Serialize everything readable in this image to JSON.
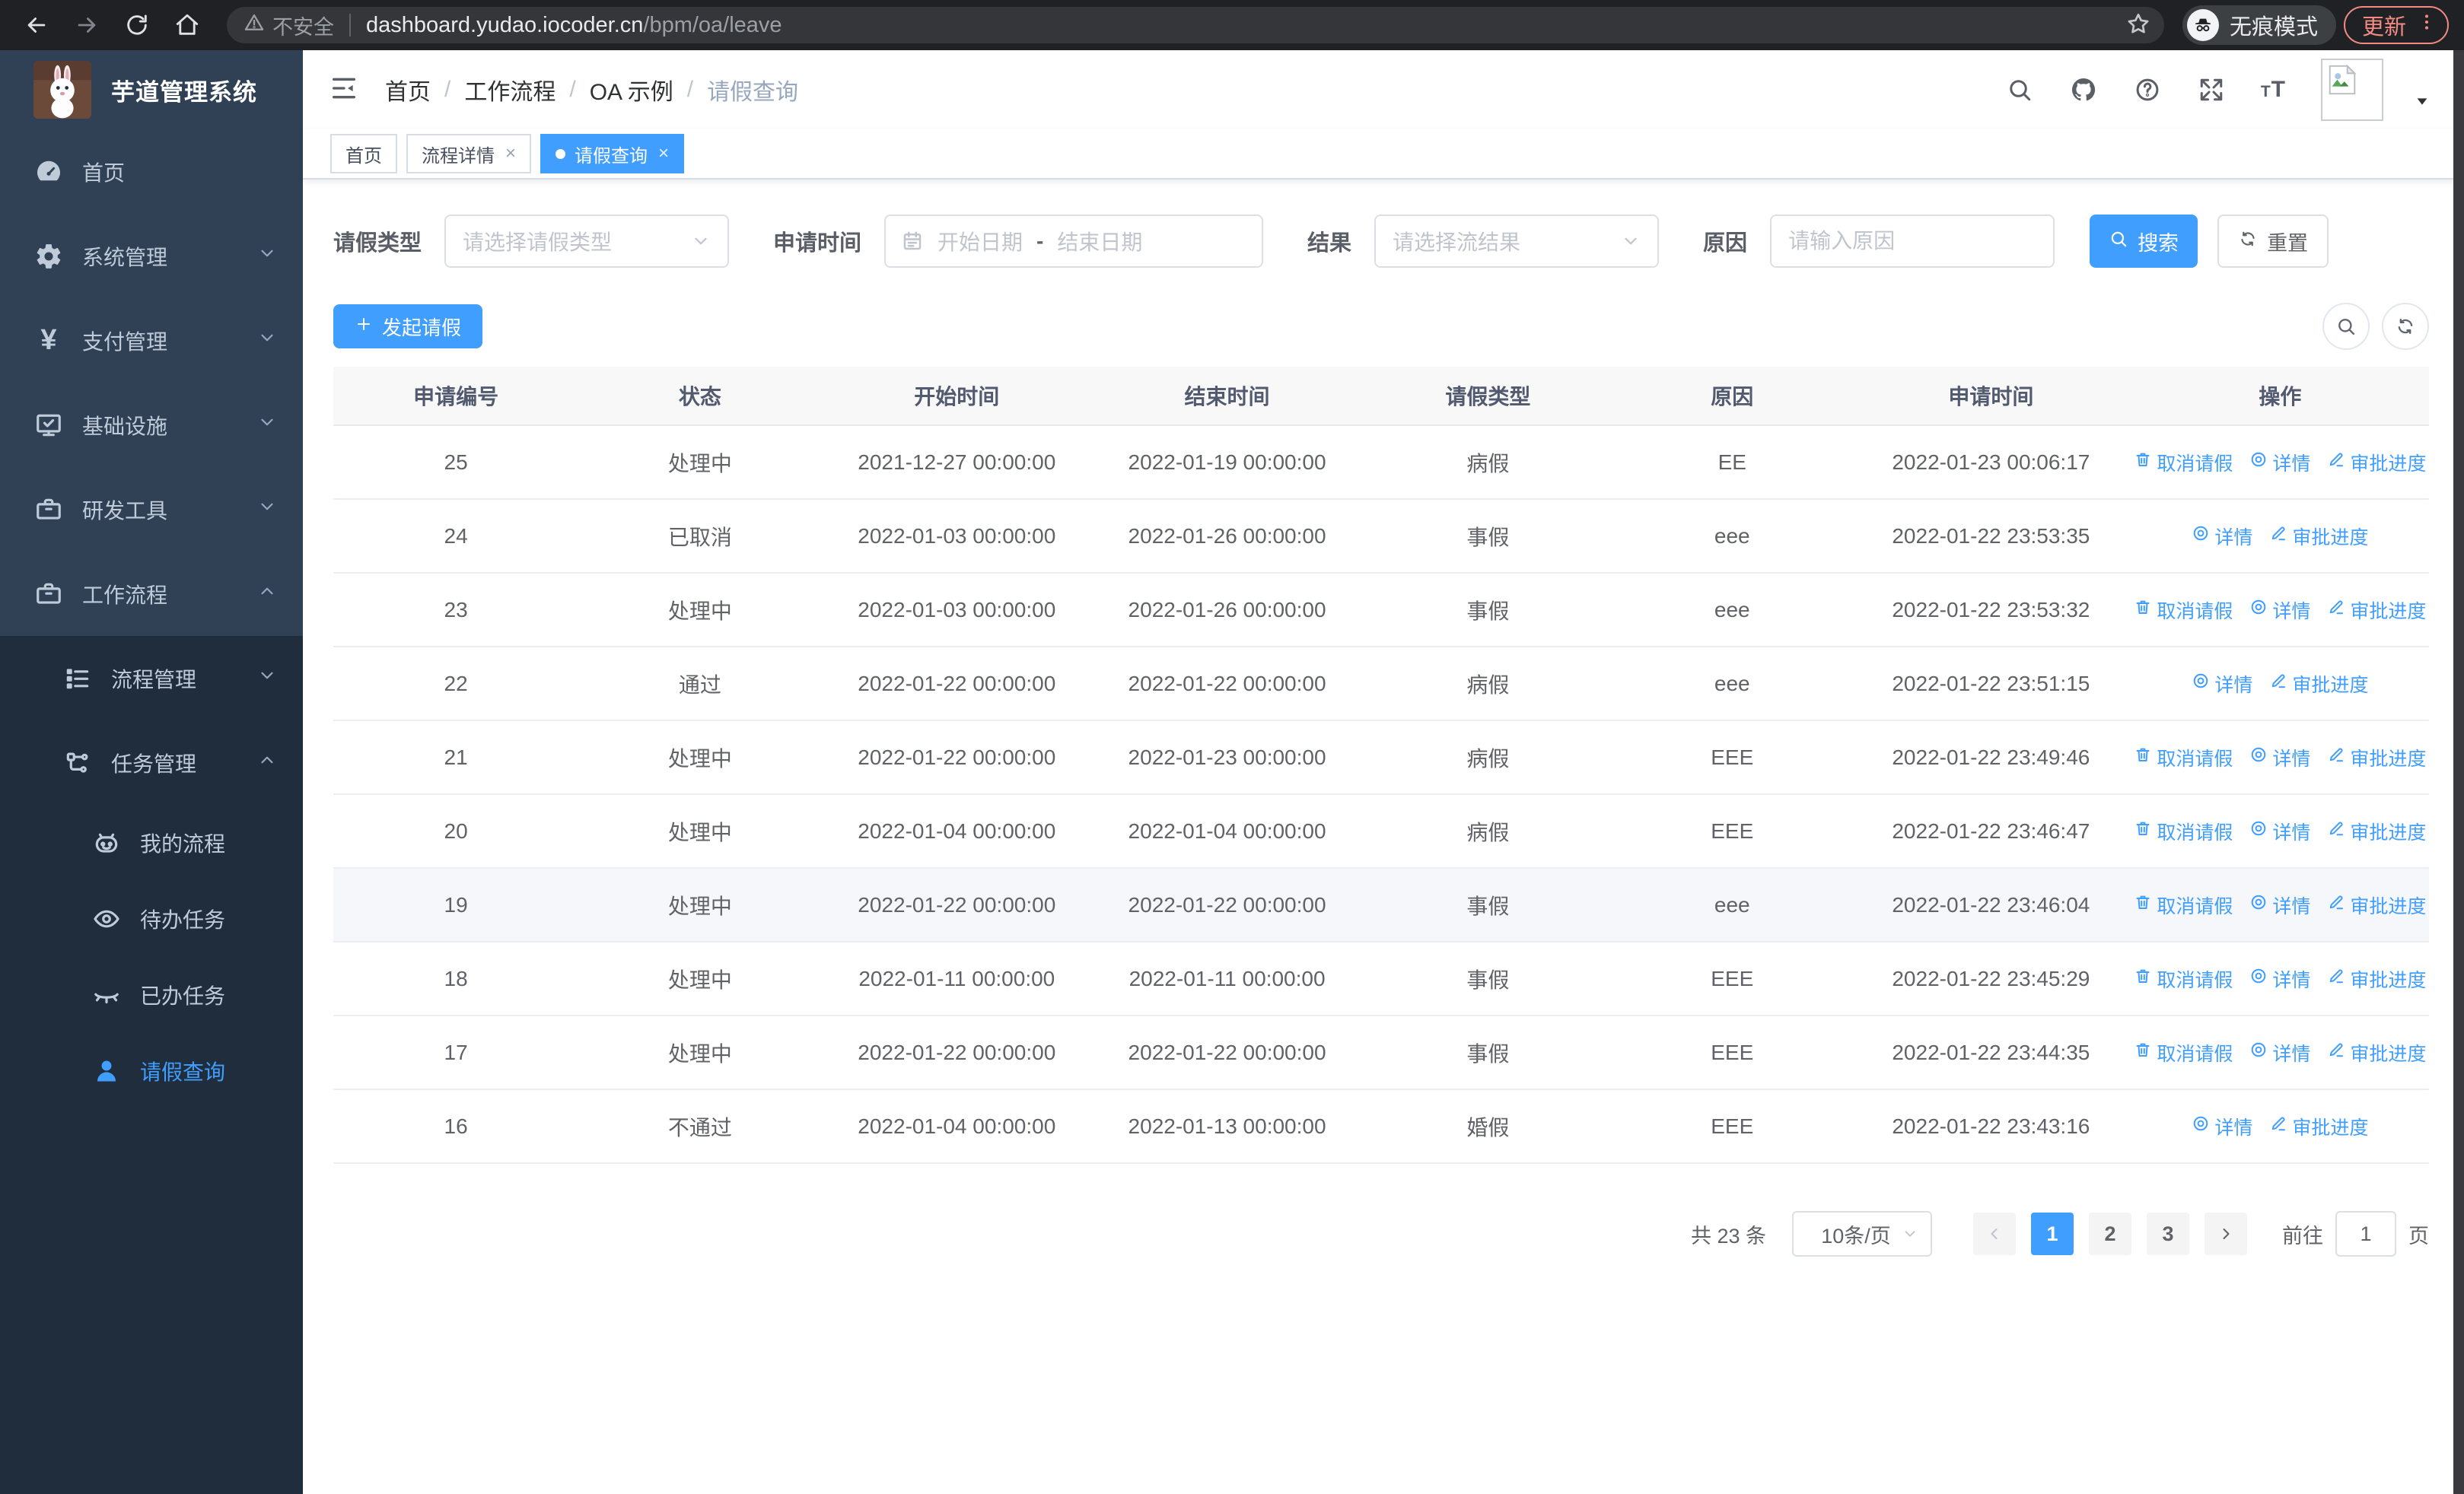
{
  "browser": {
    "security_label": "不安全",
    "url_host": "dashboard.yudao.iocoder.cn",
    "url_path": "/bpm/oa/leave",
    "incognito_label": "无痕模式",
    "update_label": "更新"
  },
  "sidebar": {
    "title": "芋道管理系统",
    "items": [
      {
        "key": "home",
        "label": "首页",
        "icon": "dashboard",
        "level": 1,
        "arrow": null,
        "dark": false,
        "active": false
      },
      {
        "key": "system",
        "label": "系统管理",
        "icon": "gear",
        "level": 1,
        "arrow": "down",
        "dark": false,
        "active": false
      },
      {
        "key": "payment",
        "label": "支付管理",
        "icon": "yen",
        "level": 1,
        "arrow": "down",
        "dark": false,
        "active": false
      },
      {
        "key": "infra",
        "label": "基础设施",
        "icon": "monitor",
        "level": 1,
        "arrow": "down",
        "dark": false,
        "active": false
      },
      {
        "key": "devtools",
        "label": "研发工具",
        "icon": "briefcase",
        "level": 1,
        "arrow": "down",
        "dark": false,
        "active": false
      },
      {
        "key": "workflow",
        "label": "工作流程",
        "icon": "briefcase",
        "level": 1,
        "arrow": "up",
        "dark": false,
        "active": false
      },
      {
        "key": "process-mgmt",
        "label": "流程管理",
        "icon": "treelist",
        "level": 2,
        "arrow": "down",
        "dark": true,
        "active": false
      },
      {
        "key": "task-mgmt",
        "label": "任务管理",
        "icon": "flow",
        "level": 2,
        "arrow": "up",
        "dark": true,
        "active": false
      },
      {
        "key": "my-process",
        "label": "我的流程",
        "icon": "robot",
        "level": 3,
        "arrow": null,
        "dark": true,
        "active": false
      },
      {
        "key": "todo-task",
        "label": "待办任务",
        "icon": "eye",
        "level": 3,
        "arrow": null,
        "dark": true,
        "active": false
      },
      {
        "key": "done-task",
        "label": "已办任务",
        "icon": "eyeclosed",
        "level": 3,
        "arrow": null,
        "dark": true,
        "active": false
      },
      {
        "key": "leave-query",
        "label": "请假查询",
        "icon": "user",
        "level": 3,
        "arrow": null,
        "dark": true,
        "active": true
      }
    ]
  },
  "header": {
    "breadcrumb": [
      "首页",
      "工作流程",
      "OA 示例",
      "请假查询"
    ],
    "font_icon_text": "tT"
  },
  "tabs": [
    {
      "label": "首页",
      "closable": false,
      "active": false
    },
    {
      "label": "流程详情",
      "closable": true,
      "active": false
    },
    {
      "label": "请假查询",
      "closable": true,
      "active": true
    }
  ],
  "filters": {
    "leave_type_label": "请假类型",
    "leave_type_placeholder": "请选择请假类型",
    "apply_time_label": "申请时间",
    "start_date_placeholder": "开始日期",
    "date_separator": "-",
    "end_date_placeholder": "结束日期",
    "result_label": "结果",
    "result_placeholder": "请选择流结果",
    "reason_label": "原因",
    "reason_placeholder": "请输入原因",
    "search_label": "搜索",
    "reset_label": "重置"
  },
  "toolbar": {
    "create_label": "发起请假"
  },
  "table": {
    "columns": [
      "申请编号",
      "状态",
      "开始时间",
      "结束时间",
      "请假类型",
      "原因",
      "申请时间",
      "操作"
    ],
    "action_labels": {
      "cancel": "取消请假",
      "detail": "详情",
      "progress": "审批进度"
    },
    "rows": [
      {
        "id": "25",
        "status": "处理中",
        "start": "2021-12-27 00:00:00",
        "end": "2022-01-19 00:00:00",
        "type": "病假",
        "reason": "EE",
        "applied": "2022-01-23 00:06:17",
        "cancelable": true,
        "highlight": false
      },
      {
        "id": "24",
        "status": "已取消",
        "start": "2022-01-03 00:00:00",
        "end": "2022-01-26 00:00:00",
        "type": "事假",
        "reason": "eee",
        "applied": "2022-01-22 23:53:35",
        "cancelable": false,
        "highlight": false
      },
      {
        "id": "23",
        "status": "处理中",
        "start": "2022-01-03 00:00:00",
        "end": "2022-01-26 00:00:00",
        "type": "事假",
        "reason": "eee",
        "applied": "2022-01-22 23:53:32",
        "cancelable": true,
        "highlight": false
      },
      {
        "id": "22",
        "status": "通过",
        "start": "2022-01-22 00:00:00",
        "end": "2022-01-22 00:00:00",
        "type": "病假",
        "reason": "eee",
        "applied": "2022-01-22 23:51:15",
        "cancelable": false,
        "highlight": false
      },
      {
        "id": "21",
        "status": "处理中",
        "start": "2022-01-22 00:00:00",
        "end": "2022-01-23 00:00:00",
        "type": "病假",
        "reason": "EEE",
        "applied": "2022-01-22 23:49:46",
        "cancelable": true,
        "highlight": false
      },
      {
        "id": "20",
        "status": "处理中",
        "start": "2022-01-04 00:00:00",
        "end": "2022-01-04 00:00:00",
        "type": "病假",
        "reason": "EEE",
        "applied": "2022-01-22 23:46:47",
        "cancelable": true,
        "highlight": false
      },
      {
        "id": "19",
        "status": "处理中",
        "start": "2022-01-22 00:00:00",
        "end": "2022-01-22 00:00:00",
        "type": "事假",
        "reason": "eee",
        "applied": "2022-01-22 23:46:04",
        "cancelable": true,
        "highlight": true
      },
      {
        "id": "18",
        "status": "处理中",
        "start": "2022-01-11 00:00:00",
        "end": "2022-01-11 00:00:00",
        "type": "事假",
        "reason": "EEE",
        "applied": "2022-01-22 23:45:29",
        "cancelable": true,
        "highlight": false
      },
      {
        "id": "17",
        "status": "处理中",
        "start": "2022-01-22 00:00:00",
        "end": "2022-01-22 00:00:00",
        "type": "事假",
        "reason": "EEE",
        "applied": "2022-01-22 23:44:35",
        "cancelable": true,
        "highlight": false
      },
      {
        "id": "16",
        "status": "不通过",
        "start": "2022-01-04 00:00:00",
        "end": "2022-01-13 00:00:00",
        "type": "婚假",
        "reason": "EEE",
        "applied": "2022-01-22 23:43:16",
        "cancelable": false,
        "highlight": false
      }
    ]
  },
  "pagination": {
    "total_label": "共 23 条",
    "page_size_value": "10条/页",
    "pages": [
      "1",
      "2",
      "3"
    ],
    "active_page": "1",
    "goto_label": "前往",
    "goto_value": "1",
    "goto_suffix": "页"
  },
  "icons": {
    "search-icon": "magnifier",
    "github-icon": "octocat",
    "question-icon": "circled question mark",
    "fullscreen-icon": "expand arrows",
    "font-size-icon": "tT glyph",
    "avatar-placeholder-icon": "broken image",
    "incognito-icon": "hat and glasses",
    "warning-icon": "triangle exclamation",
    "cancel-icon": "trash",
    "detail-icon": "concentric circles",
    "progress-icon": "pen"
  },
  "colors": {
    "accent": "#409eff",
    "sidebar_bg": "#304156",
    "sidebar_submenu_bg": "#1f2d3d",
    "update_button": "#f28b82",
    "table_header_bg": "#f8f8f9",
    "row_highlight": "#f5f7fa"
  }
}
